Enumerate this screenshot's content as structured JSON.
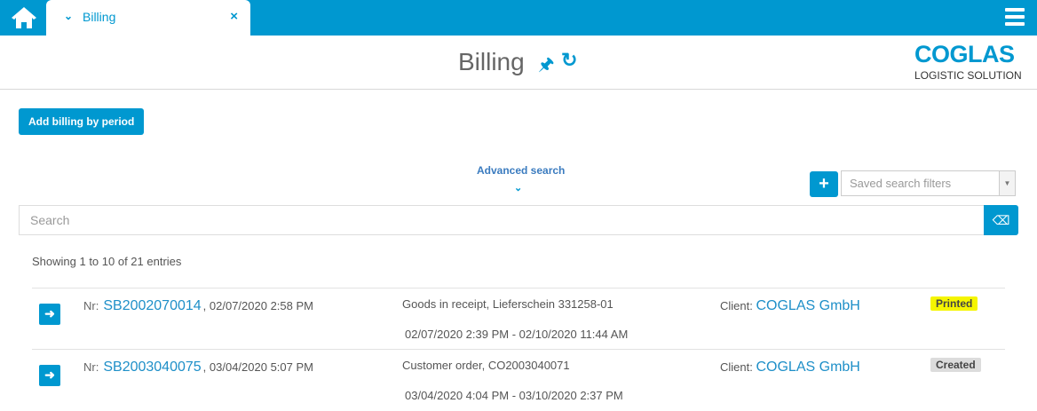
{
  "tabs": [
    {
      "label": "Billing"
    }
  ],
  "header": {
    "title": "Billing",
    "logo_main": "COGLAS",
    "logo_sub": "LOGISTIC SOLUTION"
  },
  "toolbar": {
    "add_label": "Add billing by period",
    "advanced_search": "Advanced search",
    "saved_filters_placeholder": "Saved search filters",
    "search_placeholder": "Search"
  },
  "list": {
    "info": "Showing 1 to 10 of 21 entries",
    "nr_label": "Nr:",
    "client_label": "Client:",
    "rows": [
      {
        "id": "SB2002070014",
        "date": ", 02/07/2020 2:58 PM",
        "desc": "Goods in receipt, Lieferschein 331258-01",
        "range": "02/07/2020 2:39 PM - 02/10/2020 11:44 AM",
        "client": "COGLAS GmbH",
        "status": "Printed",
        "status_color": "#f5f500"
      },
      {
        "id": "SB2003040075",
        "date": ", 03/04/2020 5:07 PM",
        "desc": "Customer order, CO2003040071",
        "range": "03/04/2020 4:04 PM - 03/10/2020 2:37 PM",
        "client": "COGLAS GmbH",
        "status": "Created",
        "status_color": "#dcdcdc"
      }
    ]
  },
  "colors": {
    "accent": "#0098d0"
  }
}
